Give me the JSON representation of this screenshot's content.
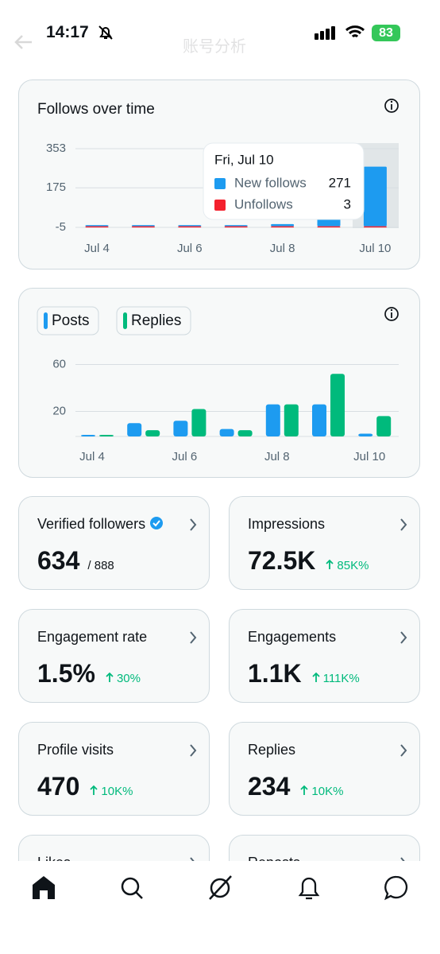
{
  "status_bar": {
    "time": "14:17",
    "battery": "83"
  },
  "header": {
    "title": "账号分析"
  },
  "follows_chart": {
    "title": "Follows over time",
    "categories": [
      "Jul 4",
      null,
      "Jul 6",
      null,
      "Jul 8",
      null,
      "Jul 10"
    ],
    "ylim": [
      -5,
      353
    ],
    "yticks": [
      -5,
      175,
      353
    ],
    "series": [
      {
        "name": "New follows",
        "color": "#1d9bf0",
        "values": [
          0,
          0,
          2,
          3,
          10,
          378,
          271
        ]
      },
      {
        "name": "Unfollows",
        "color": "#f4212e",
        "values": [
          0,
          3,
          0,
          2,
          0,
          5,
          3
        ]
      }
    ],
    "tooltip": {
      "date": "Fri, Jul 10",
      "values": [
        271,
        3
      ]
    }
  },
  "posts_chart": {
    "categories": [
      "Jul 4",
      null,
      "Jul 6",
      null,
      "Jul 8",
      null,
      "Jul 10"
    ],
    "ylim": [
      0,
      62
    ],
    "yticks": [
      20,
      60
    ],
    "series": [
      {
        "name": "Posts",
        "color": "#1d9bf0",
        "values": [
          0,
          10,
          12,
          5,
          26,
          26,
          1
        ]
      },
      {
        "name": "Replies",
        "color": "#00ba7c",
        "values": [
          0,
          4,
          22,
          4,
          26,
          52,
          16
        ]
      }
    ]
  },
  "stats": [
    {
      "label": "Verified followers",
      "value": "634",
      "total": "/ 888"
    },
    {
      "label": "Impressions",
      "value": "72.5K",
      "change": "85K%"
    },
    {
      "label": "Engagement rate",
      "value": "1.5%",
      "change": "30%"
    },
    {
      "label": "Engagements",
      "value": "1.1K",
      "change": "111K%"
    },
    {
      "label": "Profile visits",
      "value": "470",
      "change": "10K%"
    },
    {
      "label": "Replies",
      "value": "234",
      "change": "10K%"
    },
    {
      "label": "Likes"
    },
    {
      "label": "Reposts"
    }
  ]
}
